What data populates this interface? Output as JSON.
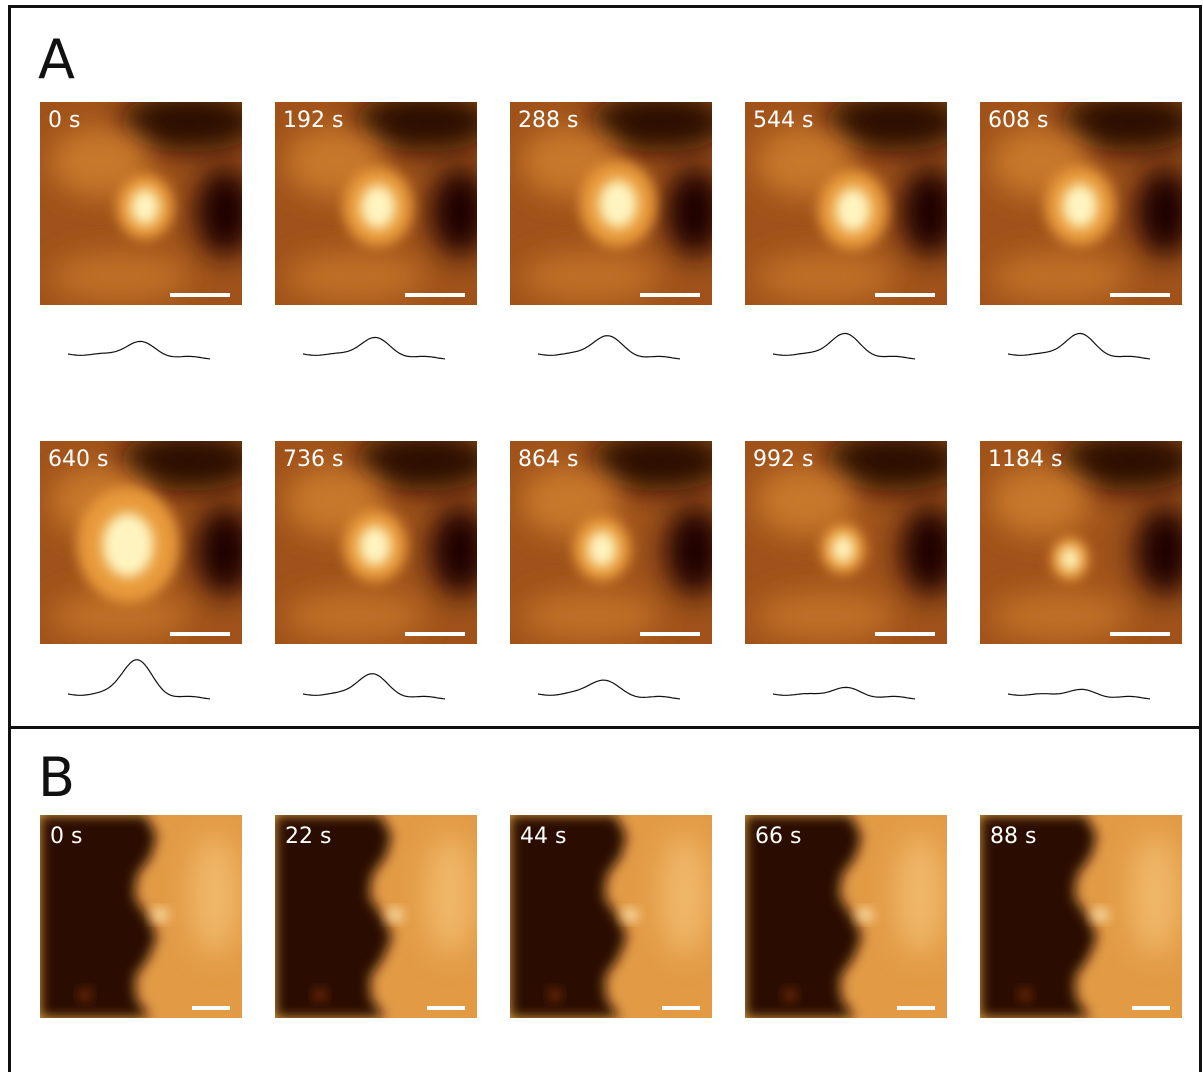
{
  "panels": [
    {
      "label": "A",
      "frames": [
        "0 s",
        "192 s",
        "288 s",
        "544 s",
        "608 s",
        "640 s",
        "736 s",
        "864 s",
        "992 s",
        "1184 s"
      ]
    },
    {
      "label": "B",
      "frames": [
        "0 s",
        "22 s",
        "44 s",
        "66 s",
        "88 s"
      ]
    }
  ]
}
